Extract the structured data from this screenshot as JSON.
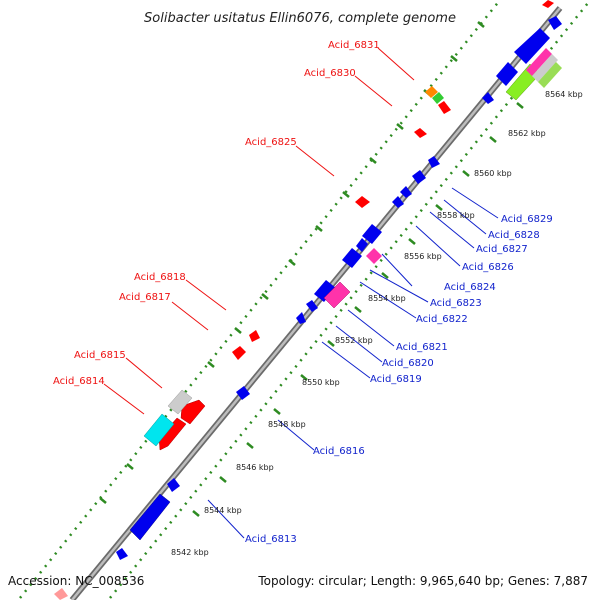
{
  "title": "Solibacter usitatus Ellin6076, complete genome",
  "footer": {
    "accession": "Accession: NC_008536",
    "topology": "Topology: circular; Length: 9,965,640 bp; Genes: 7,887"
  },
  "colors": {
    "background": "#ffffff",
    "backbone": "#8a8a8a",
    "tick_track": "#2e8b22",
    "forward_gene": "#ff0000",
    "reverse_gene": "#0000ee",
    "forward_label": "#ee1111",
    "reverse_label": "#1122cc"
  },
  "tick_labels": [
    "8542 kbp",
    "8544 kbp",
    "8546 kbp",
    "8548 kbp",
    "8550 kbp",
    "8552 kbp",
    "8554 kbp",
    "8556 kbp",
    "8558 kbp",
    "8560 kbp",
    "8562 kbp",
    "8564 kbp"
  ],
  "forward_labels": [
    "Acid_6831",
    "Acid_6830",
    "Acid_6825",
    "Acid_6818",
    "Acid_6817",
    "Acid_6815",
    "Acid_6814"
  ],
  "reverse_labels": [
    "Acid_6829",
    "Acid_6828",
    "Acid_6827",
    "Acid_6826",
    "Acid_6824",
    "Acid_6823",
    "Acid_6822",
    "Acid_6821",
    "Acid_6820",
    "Acid_6819",
    "Acid_6816",
    "Acid_6813"
  ]
}
